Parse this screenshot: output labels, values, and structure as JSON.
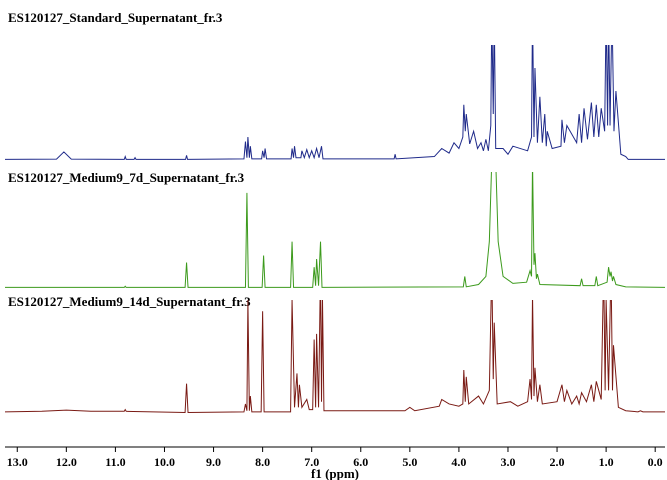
{
  "chart_data": [
    {
      "type": "line",
      "title": "ES120127_Standard_Supernatant_fr.3",
      "color": "#1f2a8a",
      "xlim": [
        13.25,
        -0.2
      ],
      "ylim": [
        0,
        100
      ],
      "x": [
        13.25,
        12.2,
        12.05,
        11.9,
        10.82,
        10.8,
        10.78,
        10.62,
        10.6,
        10.58,
        9.57,
        9.55,
        9.53,
        8.38,
        8.35,
        8.32,
        8.3,
        8.27,
        8.25,
        8.22,
        8.02,
        8.0,
        7.97,
        7.95,
        7.92,
        7.42,
        7.4,
        7.37,
        7.35,
        7.32,
        7.22,
        7.2,
        7.15,
        7.1,
        7.05,
        7.0,
        6.95,
        6.9,
        6.85,
        6.8,
        6.77,
        5.32,
        5.3,
        5.28,
        4.5,
        4.35,
        4.2,
        4.1,
        4.0,
        3.92,
        3.9,
        3.87,
        3.85,
        3.78,
        3.7,
        3.62,
        3.55,
        3.5,
        3.45,
        3.4,
        3.35,
        3.33,
        3.3,
        3.28,
        3.25,
        3.1,
        3.0,
        2.9,
        2.6,
        2.52,
        2.5,
        2.47,
        2.45,
        2.4,
        2.35,
        2.3,
        2.25,
        2.22,
        2.2,
        2.1,
        1.92,
        1.9,
        1.85,
        1.8,
        1.6,
        1.55,
        1.5,
        1.45,
        1.38,
        1.3,
        1.25,
        1.2,
        1.15,
        1.1,
        1.03,
        1.0,
        0.97,
        0.95,
        0.92,
        0.88,
        0.84,
        0.8,
        0.7,
        0.6,
        0.55,
        -0.2
      ],
      "values": [
        0.5,
        0.8,
        7,
        0.8,
        0.5,
        3,
        0.5,
        0.5,
        2,
        0.5,
        0.5,
        4,
        0.5,
        1,
        16,
        2,
        20,
        2,
        12,
        1,
        1,
        8,
        2,
        10,
        1,
        1,
        10,
        2,
        12,
        2,
        2,
        8,
        2,
        9,
        2,
        8,
        2,
        10,
        2,
        12,
        1,
        1,
        5,
        1,
        3,
        10,
        6,
        15,
        10,
        20,
        48,
        25,
        40,
        14,
        25,
        10,
        15,
        8,
        18,
        8,
        30,
        130,
        40,
        130,
        10,
        10,
        5,
        12,
        8,
        20,
        130,
        20,
        80,
        15,
        55,
        15,
        40,
        12,
        25,
        10,
        12,
        35,
        15,
        30,
        15,
        40,
        15,
        45,
        18,
        50,
        20,
        48,
        20,
        45,
        25,
        130,
        30,
        130,
        30,
        130,
        25,
        60,
        5,
        3,
        0.5,
        0.5
      ]
    },
    {
      "type": "line",
      "title": "ES120127_Medium9_7d_Supernatant_fr.3",
      "color": "#3c9a1c",
      "xlim": [
        13.25,
        -0.2
      ],
      "ylim": [
        0,
        100
      ],
      "x": [
        13.25,
        10.82,
        10.8,
        10.78,
        9.58,
        9.55,
        9.52,
        8.35,
        8.32,
        8.29,
        8.01,
        7.98,
        7.95,
        7.43,
        7.4,
        7.37,
        6.98,
        6.95,
        6.92,
        6.9,
        6.86,
        6.82,
        6.79,
        3.91,
        3.88,
        3.85,
        3.6,
        3.45,
        3.38,
        3.33,
        3.25,
        3.2,
        3.1,
        2.9,
        2.62,
        2.55,
        2.52,
        2.5,
        2.47,
        2.45,
        2.42,
        2.4,
        2.35,
        1.53,
        1.5,
        1.47,
        1.23,
        1.2,
        1.17,
        0.98,
        0.95,
        0.92,
        0.9,
        0.87,
        0.85,
        0.8,
        0.6,
        -0.2
      ],
      "values": [
        0.5,
        0.5,
        1.5,
        0.5,
        0.5,
        22,
        0.5,
        0.5,
        82,
        0.5,
        0.5,
        28,
        0.5,
        0.5,
        40,
        0.5,
        0.5,
        18,
        2,
        25,
        2,
        40,
        0.5,
        1,
        10,
        1,
        3,
        10,
        40,
        110,
        110,
        40,
        10,
        4,
        5,
        15,
        10,
        110,
        20,
        30,
        8,
        12,
        3,
        2,
        8,
        2,
        2,
        10,
        2,
        5,
        18,
        10,
        14,
        6,
        10,
        3,
        1,
        0.5
      ]
    },
    {
      "type": "line",
      "title": "ES120127_Medium9_14d_Supernatant_fr.3",
      "color": "#7a1a14",
      "xlim": [
        13.25,
        -0.2
      ],
      "ylim": [
        0,
        100
      ],
      "x": [
        13.25,
        12.5,
        12.0,
        11.5,
        10.82,
        10.8,
        10.78,
        9.58,
        9.55,
        9.52,
        8.38,
        8.35,
        8.32,
        8.3,
        8.27,
        8.25,
        8.22,
        8.03,
        8.0,
        7.97,
        7.43,
        7.4,
        7.35,
        7.3,
        7.27,
        7.25,
        7.2,
        7.1,
        7.05,
        6.98,
        6.95,
        6.92,
        6.9,
        6.86,
        6.82,
        6.8,
        6.78,
        6.75,
        5.1,
        5.0,
        4.9,
        4.4,
        4.35,
        4.2,
        4.0,
        3.92,
        3.9,
        3.87,
        3.85,
        3.8,
        3.6,
        3.5,
        3.38,
        3.33,
        3.3,
        3.28,
        3.22,
        2.95,
        2.8,
        2.6,
        2.55,
        2.52,
        2.5,
        2.47,
        2.45,
        2.4,
        2.35,
        2.3,
        2.0,
        1.9,
        1.85,
        1.8,
        1.7,
        1.6,
        1.55,
        1.5,
        1.4,
        1.3,
        1.25,
        1.2,
        1.1,
        1.05,
        1.02,
        1.0,
        0.95,
        0.9,
        0.87,
        0.85,
        0.75,
        0.6,
        0.35,
        0.3,
        0.25,
        -0.2
      ],
      "values": [
        1,
        1.5,
        2.5,
        1.5,
        1.5,
        3,
        1.5,
        0.5,
        26,
        0.5,
        1,
        8,
        2,
        100,
        2,
        15,
        1,
        1,
        90,
        1,
        1,
        100,
        5,
        35,
        5,
        25,
        5,
        12,
        3,
        3,
        65,
        5,
        70,
        5,
        130,
        10,
        100,
        2,
        2,
        5,
        2,
        6,
        12,
        8,
        6,
        8,
        38,
        10,
        32,
        8,
        15,
        8,
        20,
        130,
        30,
        80,
        8,
        10,
        6,
        10,
        30,
        12,
        105,
        15,
        40,
        10,
        25,
        8,
        10,
        25,
        10,
        20,
        8,
        15,
        8,
        18,
        10,
        25,
        10,
        28,
        12,
        130,
        20,
        100,
        20,
        130,
        20,
        60,
        5,
        2,
        1,
        2,
        1,
        1
      ],
      "xlabel": "f1 (ppm)",
      "xticks": [
        {
          "value": 13,
          "label": "13.0"
        },
        {
          "value": 12,
          "label": "12.0"
        },
        {
          "value": 11,
          "label": "11.0"
        },
        {
          "value": 10,
          "label": "10.0"
        },
        {
          "value": 9,
          "label": "9.0"
        },
        {
          "value": 8,
          "label": "8.0"
        },
        {
          "value": 7,
          "label": "7.0"
        },
        {
          "value": 6,
          "label": "6.0"
        },
        {
          "value": 5,
          "label": "5.0"
        },
        {
          "value": 4,
          "label": "4.0"
        },
        {
          "value": 3,
          "label": "3.0"
        },
        {
          "value": 2,
          "label": "2.0"
        },
        {
          "value": 1,
          "label": "1.0"
        },
        {
          "value": 0,
          "label": "0.0"
        }
      ]
    }
  ]
}
